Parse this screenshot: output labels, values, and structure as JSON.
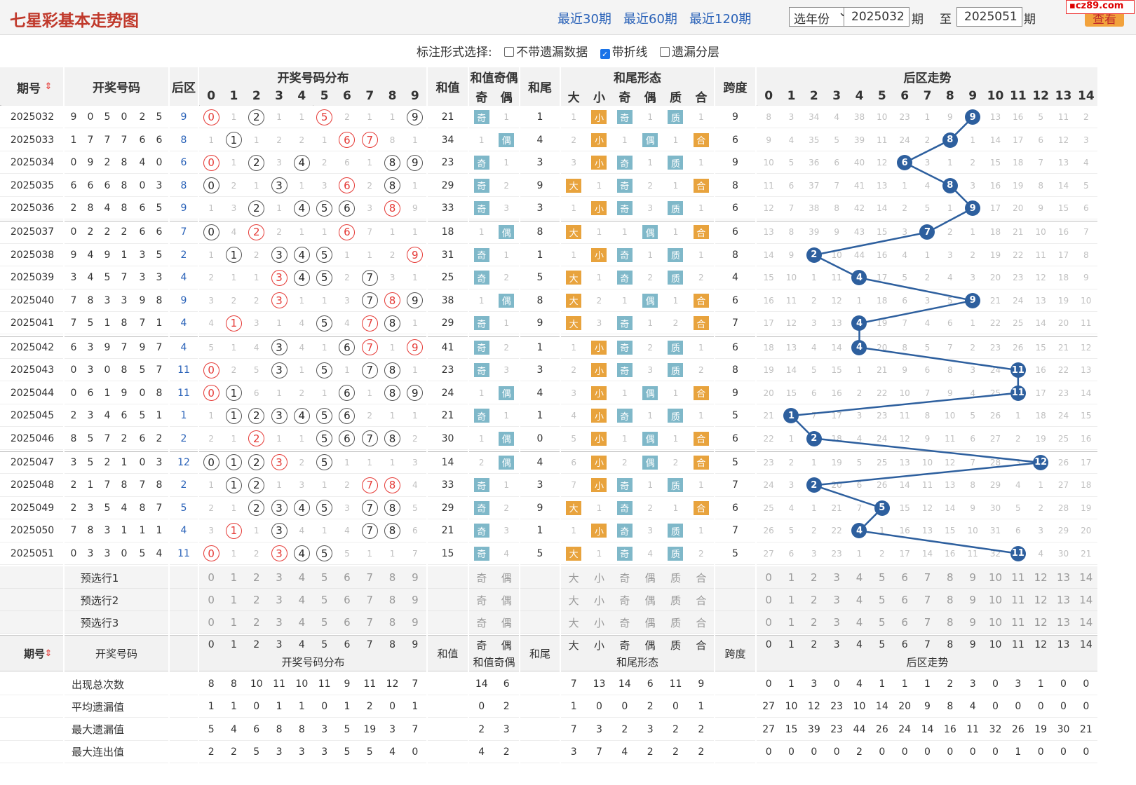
{
  "header": {
    "title": "七星彩基本走势图",
    "quick_links": [
      "最近30期",
      "最近60期",
      "最近120期"
    ],
    "year_select": "选年份",
    "from_issue": "2025032",
    "issue_suffix": "期",
    "to_label": "至",
    "to_issue": "2025051",
    "search_button": "查看",
    "logo": "cz89.com"
  },
  "options": {
    "label": "标注形式选择:",
    "items": [
      {
        "label": "不带遗漏数据",
        "checked": false
      },
      {
        "label": "带折线",
        "checked": true
      },
      {
        "label": "遗漏分层",
        "checked": false
      }
    ]
  },
  "columns": {
    "issue": "期号",
    "numbers": "开奖号码",
    "back": "后区",
    "dist": "开奖号码分布",
    "sum": "和值",
    "sum_parity": "和值奇偶",
    "odd": "奇",
    "even": "偶",
    "tail": "和尾",
    "tail_form": "和尾形态",
    "big": "大",
    "small": "小",
    "prime": "质",
    "composite": "合",
    "span": "跨度",
    "back_trend": "后区走势"
  },
  "rows": [
    {
      "issue": "2025032",
      "nums": [
        9,
        0,
        5,
        0,
        2,
        5
      ],
      "back": 9,
      "dist": [
        0,
        1,
        2,
        1,
        1,
        5,
        2,
        1,
        1,
        9
      ],
      "sum": 21,
      "sp": [
        "奇",
        "1"
      ],
      "tail": 1,
      "bs": [
        "1",
        "小"
      ],
      "oe": [
        "奇",
        "1"
      ],
      "pc": [
        "质",
        "1"
      ],
      "span": 9,
      "trend": [
        8,
        3,
        34,
        4,
        38,
        10,
        23,
        1,
        9,
        9,
        13,
        16,
        5,
        11,
        2
      ]
    },
    {
      "issue": "2025033",
      "nums": [
        1,
        7,
        7,
        7,
        6,
        6
      ],
      "back": 8,
      "dist": [
        1,
        1,
        1,
        2,
        2,
        1,
        6,
        7,
        8,
        1
      ],
      "sum": 34,
      "sp": [
        "1",
        "偶"
      ],
      "tail": 4,
      "bs": [
        "2",
        "小"
      ],
      "oe": [
        "1",
        "偶"
      ],
      "pc": [
        "1",
        "合"
      ],
      "span": 6,
      "trend": [
        9,
        4,
        35,
        5,
        39,
        11,
        24,
        2,
        8,
        1,
        14,
        17,
        6,
        12,
        3
      ]
    },
    {
      "issue": "2025034",
      "nums": [
        0,
        9,
        2,
        8,
        4,
        0
      ],
      "back": 6,
      "dist": [
        0,
        1,
        2,
        3,
        4,
        2,
        6,
        1,
        8,
        9
      ],
      "sum": 23,
      "sp": [
        "奇",
        "1"
      ],
      "tail": 3,
      "bs": [
        "3",
        "小"
      ],
      "oe": [
        "奇",
        "1"
      ],
      "pc": [
        "质",
        "1"
      ],
      "span": 9,
      "trend": [
        10,
        5,
        36,
        6,
        40,
        12,
        6,
        3,
        1,
        2,
        15,
        18,
        7,
        13,
        4
      ]
    },
    {
      "issue": "2025035",
      "nums": [
        6,
        6,
        6,
        8,
        0,
        3
      ],
      "back": 8,
      "dist": [
        0,
        2,
        1,
        3,
        1,
        3,
        6,
        2,
        8,
        1
      ],
      "sum": 29,
      "sp": [
        "奇",
        "2"
      ],
      "tail": 9,
      "bs": [
        "大",
        "1"
      ],
      "oe": [
        "奇",
        "2"
      ],
      "pc": [
        "1",
        "合"
      ],
      "span": 8,
      "trend": [
        11,
        6,
        37,
        7,
        41,
        13,
        1,
        4,
        8,
        3,
        16,
        19,
        8,
        14,
        5
      ]
    },
    {
      "issue": "2025036",
      "nums": [
        2,
        8,
        4,
        8,
        6,
        5
      ],
      "back": 9,
      "dist": [
        1,
        3,
        2,
        1,
        4,
        5,
        6,
        3,
        8,
        9
      ],
      "sum": 33,
      "sp": [
        "奇",
        "3"
      ],
      "tail": 3,
      "bs": [
        "1",
        "小"
      ],
      "oe": [
        "奇",
        "3"
      ],
      "pc": [
        "质",
        "1"
      ],
      "span": 6,
      "trend": [
        12,
        7,
        38,
        8,
        42,
        14,
        2,
        5,
        1,
        9,
        17,
        20,
        9,
        15,
        6
      ]
    },
    {
      "issue": "2025037",
      "nums": [
        0,
        2,
        2,
        2,
        6,
        6
      ],
      "back": 7,
      "dist": [
        0,
        4,
        2,
        2,
        1,
        1,
        6,
        7,
        1,
        1
      ],
      "sum": 18,
      "sp": [
        "1",
        "偶"
      ],
      "tail": 8,
      "bs": [
        "大",
        "1"
      ],
      "oe": [
        "1",
        "偶"
      ],
      "pc": [
        "1",
        "合"
      ],
      "span": 6,
      "trend": [
        13,
        8,
        39,
        9,
        43,
        15,
        3,
        7,
        2,
        1,
        18,
        21,
        10,
        16,
        7
      ]
    },
    {
      "issue": "2025038",
      "nums": [
        9,
        4,
        9,
        1,
        3,
        5
      ],
      "back": 2,
      "dist": [
        1,
        1,
        2,
        3,
        4,
        5,
        1,
        1,
        2,
        9
      ],
      "sum": 31,
      "sp": [
        "奇",
        "1"
      ],
      "tail": 1,
      "bs": [
        "1",
        "小"
      ],
      "oe": [
        "奇",
        "1"
      ],
      "pc": [
        "质",
        "1"
      ],
      "span": 8,
      "trend": [
        14,
        9,
        2,
        10,
        44,
        16,
        4,
        1,
        3,
        2,
        19,
        22,
        11,
        17,
        8
      ]
    },
    {
      "issue": "2025039",
      "nums": [
        3,
        4,
        5,
        7,
        3,
        3
      ],
      "back": 4,
      "dist": [
        2,
        1,
        1,
        3,
        4,
        5,
        2,
        7,
        3,
        1
      ],
      "sum": 25,
      "sp": [
        "奇",
        "2"
      ],
      "tail": 5,
      "bs": [
        "大",
        "1"
      ],
      "oe": [
        "奇",
        "2"
      ],
      "pc": [
        "质",
        "2"
      ],
      "span": 4,
      "trend": [
        15,
        10,
        1,
        11,
        4,
        17,
        5,
        2,
        4,
        3,
        20,
        23,
        12,
        18,
        9
      ]
    },
    {
      "issue": "2025040",
      "nums": [
        7,
        8,
        3,
        3,
        9,
        8
      ],
      "back": 9,
      "dist": [
        3,
        2,
        2,
        3,
        1,
        1,
        3,
        7,
        8,
        9
      ],
      "sum": 38,
      "sp": [
        "1",
        "偶"
      ],
      "tail": 8,
      "bs": [
        "大",
        "2"
      ],
      "oe": [
        "1",
        "偶"
      ],
      "pc": [
        "1",
        "合"
      ],
      "span": 6,
      "trend": [
        16,
        11,
        2,
        12,
        1,
        18,
        6,
        3,
        5,
        9,
        21,
        24,
        13,
        19,
        10
      ]
    },
    {
      "issue": "2025041",
      "nums": [
        7,
        5,
        1,
        8,
        7,
        1
      ],
      "back": 4,
      "dist": [
        4,
        1,
        3,
        1,
        4,
        5,
        4,
        7,
        8,
        1
      ],
      "sum": 29,
      "sp": [
        "奇",
        "1"
      ],
      "tail": 9,
      "bs": [
        "大",
        "3"
      ],
      "oe": [
        "奇",
        "1"
      ],
      "pc": [
        "2",
        "合"
      ],
      "span": 7,
      "trend": [
        17,
        12,
        3,
        13,
        4,
        19,
        7,
        4,
        6,
        1,
        22,
        25,
        14,
        20,
        11
      ]
    },
    {
      "issue": "2025042",
      "nums": [
        6,
        3,
        9,
        7,
        9,
        7
      ],
      "back": 4,
      "dist": [
        5,
        1,
        4,
        3,
        4,
        1,
        6,
        7,
        1,
        9
      ],
      "sum": 41,
      "sp": [
        "奇",
        "2"
      ],
      "tail": 1,
      "bs": [
        "1",
        "小"
      ],
      "oe": [
        "奇",
        "2"
      ],
      "pc": [
        "质",
        "1"
      ],
      "span": 6,
      "trend": [
        18,
        13,
        4,
        14,
        4,
        20,
        8,
        5,
        7,
        2,
        23,
        26,
        15,
        21,
        12
      ]
    },
    {
      "issue": "2025043",
      "nums": [
        0,
        3,
        0,
        8,
        5,
        7
      ],
      "back": 11,
      "dist": [
        0,
        2,
        5,
        3,
        1,
        5,
        1,
        7,
        8,
        1
      ],
      "sum": 23,
      "sp": [
        "奇",
        "3"
      ],
      "tail": 3,
      "bs": [
        "2",
        "小"
      ],
      "oe": [
        "奇",
        "3"
      ],
      "pc": [
        "质",
        "2"
      ],
      "span": 8,
      "trend": [
        19,
        14,
        5,
        15,
        1,
        21,
        9,
        6,
        8,
        3,
        24,
        11,
        16,
        22,
        13
      ]
    },
    {
      "issue": "2025044",
      "nums": [
        0,
        6,
        1,
        9,
        0,
        8
      ],
      "back": 11,
      "dist": [
        0,
        1,
        6,
        1,
        2,
        1,
        6,
        1,
        8,
        9
      ],
      "sum": 24,
      "sp": [
        "1",
        "偶"
      ],
      "tail": 4,
      "bs": [
        "3",
        "小"
      ],
      "oe": [
        "1",
        "偶"
      ],
      "pc": [
        "1",
        "合"
      ],
      "span": 9,
      "trend": [
        20,
        15,
        6,
        16,
        2,
        22,
        10,
        7,
        9,
        4,
        25,
        11,
        17,
        23,
        14
      ]
    },
    {
      "issue": "2025045",
      "nums": [
        2,
        3,
        4,
        6,
        5,
        1
      ],
      "back": 1,
      "dist": [
        1,
        1,
        2,
        3,
        4,
        5,
        6,
        2,
        1,
        1
      ],
      "sum": 21,
      "sp": [
        "奇",
        "1"
      ],
      "tail": 1,
      "bs": [
        "4",
        "小"
      ],
      "oe": [
        "奇",
        "1"
      ],
      "pc": [
        "质",
        "1"
      ],
      "span": 5,
      "trend": [
        21,
        1,
        7,
        17,
        3,
        23,
        11,
        8,
        10,
        5,
        26,
        1,
        18,
        24,
        15
      ]
    },
    {
      "issue": "2025046",
      "nums": [
        8,
        5,
        7,
        2,
        6,
        2
      ],
      "back": 2,
      "dist": [
        2,
        1,
        2,
        1,
        1,
        5,
        6,
        7,
        8,
        2
      ],
      "sum": 30,
      "sp": [
        "1",
        "偶"
      ],
      "tail": 0,
      "bs": [
        "5",
        "小"
      ],
      "oe": [
        "1",
        "偶"
      ],
      "pc": [
        "1",
        "合"
      ],
      "span": 6,
      "trend": [
        22,
        1,
        2,
        18,
        4,
        24,
        12,
        9,
        11,
        6,
        27,
        2,
        19,
        25,
        16
      ]
    },
    {
      "issue": "2025047",
      "nums": [
        3,
        5,
        2,
        1,
        0,
        3
      ],
      "back": 12,
      "dist": [
        0,
        1,
        2,
        3,
        2,
        5,
        1,
        1,
        1,
        3
      ],
      "sum": 14,
      "sp": [
        "2",
        "偶"
      ],
      "tail": 4,
      "bs": [
        "6",
        "小"
      ],
      "oe": [
        "2",
        "偶"
      ],
      "pc": [
        "2",
        "合"
      ],
      "span": 5,
      "trend": [
        23,
        2,
        1,
        19,
        5,
        25,
        13,
        10,
        12,
        7,
        28,
        3,
        12,
        26,
        17
      ]
    },
    {
      "issue": "2025048",
      "nums": [
        2,
        1,
        7,
        8,
        7,
        8
      ],
      "back": 2,
      "dist": [
        1,
        1,
        2,
        1,
        3,
        1,
        2,
        7,
        8,
        4
      ],
      "sum": 33,
      "sp": [
        "奇",
        "1"
      ],
      "tail": 3,
      "bs": [
        "7",
        "小"
      ],
      "oe": [
        "奇",
        "1"
      ],
      "pc": [
        "质",
        "1"
      ],
      "span": 7,
      "trend": [
        24,
        3,
        2,
        20,
        6,
        26,
        14,
        11,
        13,
        8,
        29,
        4,
        1,
        27,
        18
      ]
    },
    {
      "issue": "2025049",
      "nums": [
        2,
        3,
        5,
        4,
        8,
        7
      ],
      "back": 5,
      "dist": [
        2,
        1,
        2,
        3,
        4,
        5,
        3,
        7,
        8,
        5
      ],
      "sum": 29,
      "sp": [
        "奇",
        "2"
      ],
      "tail": 9,
      "bs": [
        "大",
        "1"
      ],
      "oe": [
        "奇",
        "2"
      ],
      "pc": [
        "1",
        "合"
      ],
      "span": 6,
      "trend": [
        25,
        4,
        1,
        21,
        7,
        5,
        15,
        12,
        14,
        9,
        30,
        5,
        2,
        28,
        19
      ]
    },
    {
      "issue": "2025050",
      "nums": [
        7,
        8,
        3,
        1,
        1,
        1
      ],
      "back": 4,
      "dist": [
        3,
        1,
        1,
        3,
        4,
        1,
        4,
        7,
        8,
        6
      ],
      "sum": 21,
      "sp": [
        "奇",
        "3"
      ],
      "tail": 1,
      "bs": [
        "1",
        "小"
      ],
      "oe": [
        "奇",
        "3"
      ],
      "pc": [
        "质",
        "1"
      ],
      "span": 7,
      "trend": [
        26,
        5,
        2,
        22,
        4,
        1,
        16,
        13,
        15,
        10,
        31,
        6,
        3,
        29,
        20
      ]
    },
    {
      "issue": "2025051",
      "nums": [
        0,
        3,
        3,
        0,
        5,
        4
      ],
      "back": 11,
      "dist": [
        0,
        1,
        2,
        3,
        4,
        5,
        5,
        1,
        1,
        7
      ],
      "sum": 15,
      "sp": [
        "奇",
        "4"
      ],
      "tail": 5,
      "bs": [
        "大",
        "1"
      ],
      "oe": [
        "奇",
        "4"
      ],
      "pc": [
        "质",
        "2"
      ],
      "span": 5,
      "trend": [
        27,
        6,
        3,
        23,
        1,
        2,
        17,
        14,
        16,
        11,
        32,
        11,
        4,
        30,
        21
      ]
    }
  ],
  "preselect": [
    "预选行1",
    "预选行2",
    "预选行3"
  ],
  "footer": {
    "dist_label": "开奖号码分布",
    "stats": [
      {
        "label": "出现总次数",
        "dist": [
          8,
          8,
          10,
          11,
          10,
          11,
          9,
          11,
          12,
          7
        ],
        "sp": [
          14,
          6
        ],
        "bs": [
          7,
          13
        ],
        "oe": [
          14,
          6
        ],
        "pc": [
          11,
          9
        ],
        "trend": [
          0,
          1,
          3,
          0,
          4,
          1,
          1,
          1,
          2,
          3,
          0,
          3,
          1,
          0,
          0
        ]
      },
      {
        "label": "平均遗漏值",
        "dist": [
          1,
          1,
          0,
          1,
          1,
          0,
          1,
          2,
          0,
          1
        ],
        "sp": [
          0,
          2
        ],
        "bs": [
          1,
          0
        ],
        "oe": [
          0,
          2
        ],
        "pc": [
          0,
          1
        ],
        "trend": [
          27,
          10,
          12,
          23,
          10,
          14,
          20,
          9,
          8,
          4,
          0,
          0,
          0,
          0,
          0
        ]
      },
      {
        "label": "最大遗漏值",
        "dist": [
          5,
          4,
          6,
          8,
          8,
          3,
          5,
          19,
          3,
          7
        ],
        "sp": [
          2,
          3
        ],
        "bs": [
          7,
          3
        ],
        "oe": [
          2,
          3
        ],
        "pc": [
          2,
          2
        ],
        "trend": [
          27,
          15,
          39,
          23,
          44,
          26,
          24,
          14,
          16,
          11,
          32,
          26,
          19,
          30,
          21
        ]
      },
      {
        "label": "最大连出值",
        "dist": [
          2,
          2,
          5,
          3,
          3,
          3,
          5,
          5,
          4,
          0
        ],
        "sp": [
          4,
          2
        ],
        "bs": [
          3,
          7
        ],
        "oe": [
          4,
          2
        ],
        "pc": [
          2,
          2
        ],
        "trend": [
          0,
          0,
          0,
          0,
          2,
          0,
          0,
          0,
          0,
          0,
          0,
          1,
          0,
          0,
          0
        ]
      }
    ]
  },
  "colors": {
    "accent_red": "#e53935",
    "trend_blue": "#2d5f9e",
    "tag_blue": "#7fb8c9",
    "tag_orange": "#e8a33d",
    "title_red": "#c0392b"
  }
}
